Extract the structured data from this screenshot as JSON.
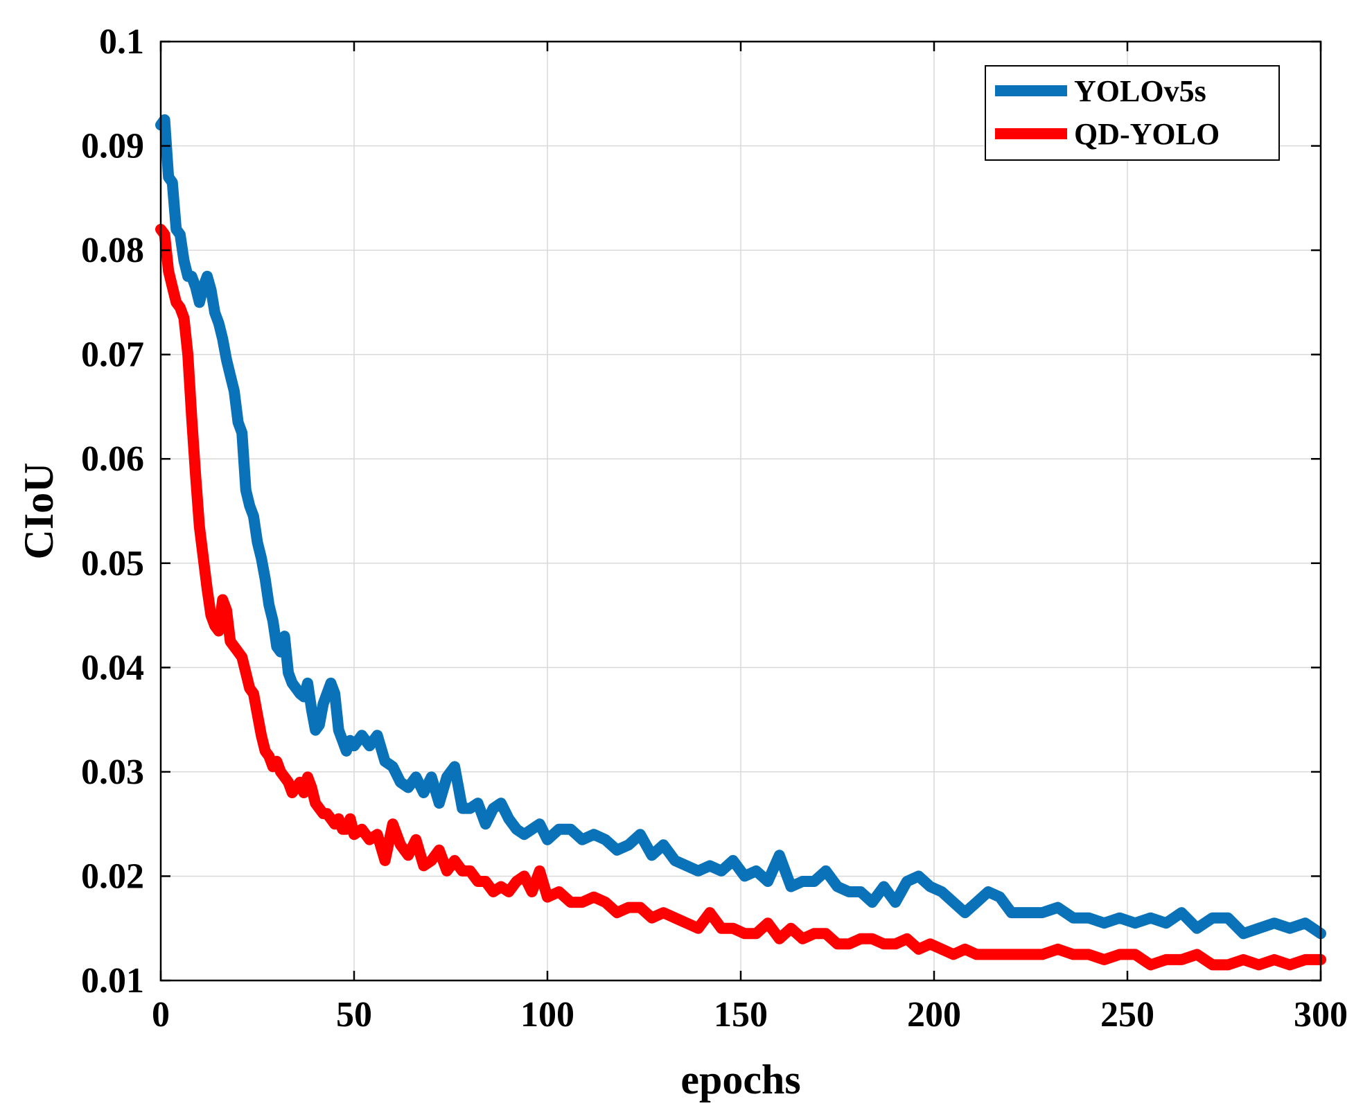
{
  "chart_data": {
    "type": "line",
    "title": "",
    "xlabel": "epochs",
    "ylabel": "CIoU",
    "xlim": [
      0,
      300
    ],
    "ylim": [
      0.01,
      0.1
    ],
    "xticks": [
      0,
      50,
      100,
      150,
      200,
      250,
      300
    ],
    "xtick_labels": [
      "0",
      "50",
      "100",
      "150",
      "200",
      "250",
      "300"
    ],
    "yticks": [
      0.01,
      0.02,
      0.03,
      0.04,
      0.05,
      0.06,
      0.07,
      0.08,
      0.09,
      0.1
    ],
    "ytick_labels": [
      "0.01",
      "0.02",
      "0.03",
      "0.04",
      "0.05",
      "0.06",
      "0.07",
      "0.08",
      "0.09",
      "0.1"
    ],
    "grid": true,
    "legend": "top-right",
    "series": [
      {
        "name": "YOLOv5s",
        "color": "#0a72b8",
        "x": [
          0,
          1,
          2,
          3,
          4,
          5,
          6,
          7,
          8,
          9,
          10,
          11,
          12,
          13,
          14,
          15,
          16,
          17,
          18,
          19,
          20,
          21,
          22,
          23,
          24,
          25,
          26,
          27,
          28,
          29,
          30,
          31,
          32,
          33,
          34,
          35,
          36,
          37,
          38,
          39,
          40,
          41,
          42,
          43,
          44,
          45,
          46,
          47,
          48,
          49,
          50,
          52,
          54,
          56,
          58,
          60,
          62,
          64,
          66,
          68,
          70,
          72,
          74,
          76,
          78,
          80,
          82,
          84,
          86,
          88,
          90,
          92,
          94,
          96,
          98,
          100,
          103,
          106,
          109,
          112,
          115,
          118,
          121,
          124,
          127,
          130,
          133,
          136,
          139,
          142,
          145,
          148,
          151,
          154,
          157,
          160,
          163,
          166,
          169,
          172,
          175,
          178,
          181,
          184,
          187,
          190,
          193,
          196,
          199,
          202,
          205,
          208,
          211,
          214,
          217,
          220,
          224,
          228,
          232,
          236,
          240,
          244,
          248,
          252,
          256,
          260,
          264,
          268,
          272,
          276,
          280,
          284,
          288,
          292,
          296,
          300
        ],
        "values": [
          0.092,
          0.0925,
          0.087,
          0.0865,
          0.082,
          0.0815,
          0.079,
          0.0775,
          0.0775,
          0.0765,
          0.075,
          0.0765,
          0.0775,
          0.0762,
          0.074,
          0.073,
          0.0715,
          0.0695,
          0.068,
          0.0665,
          0.0635,
          0.0625,
          0.057,
          0.0555,
          0.0545,
          0.052,
          0.0505,
          0.0485,
          0.046,
          0.0445,
          0.042,
          0.0415,
          0.043,
          0.0395,
          0.0385,
          0.038,
          0.0375,
          0.0372,
          0.0385,
          0.036,
          0.034,
          0.0345,
          0.0365,
          0.0375,
          0.0385,
          0.0375,
          0.034,
          0.033,
          0.032,
          0.033,
          0.0325,
          0.0335,
          0.0325,
          0.0335,
          0.031,
          0.0305,
          0.029,
          0.0285,
          0.0295,
          0.028,
          0.0295,
          0.027,
          0.0295,
          0.0305,
          0.0265,
          0.0265,
          0.027,
          0.025,
          0.0265,
          0.027,
          0.0255,
          0.0245,
          0.024,
          0.0245,
          0.025,
          0.0235,
          0.0245,
          0.0245,
          0.0235,
          0.024,
          0.0235,
          0.0225,
          0.023,
          0.024,
          0.022,
          0.023,
          0.0215,
          0.021,
          0.0205,
          0.021,
          0.0205,
          0.0215,
          0.02,
          0.0205,
          0.0195,
          0.022,
          0.019,
          0.0195,
          0.0195,
          0.0205,
          0.019,
          0.0185,
          0.0185,
          0.0175,
          0.019,
          0.0175,
          0.0195,
          0.02,
          0.019,
          0.0185,
          0.0175,
          0.0165,
          0.0175,
          0.0185,
          0.018,
          0.0165,
          0.0165,
          0.0165,
          0.017,
          0.016,
          0.016,
          0.0155,
          0.016,
          0.0155,
          0.016,
          0.0155,
          0.0165,
          0.015,
          0.016,
          0.016,
          0.0145,
          0.015,
          0.0155,
          0.015,
          0.0155,
          0.0145
        ]
      },
      {
        "name": "QD-YOLO",
        "color": "#ff0000",
        "x": [
          0,
          1,
          2,
          3,
          4,
          5,
          6,
          7,
          8,
          9,
          10,
          11,
          12,
          13,
          14,
          15,
          16,
          17,
          18,
          19,
          20,
          21,
          22,
          23,
          24,
          25,
          26,
          27,
          28,
          29,
          30,
          31,
          32,
          33,
          34,
          35,
          36,
          37,
          38,
          39,
          40,
          41,
          42,
          43,
          44,
          45,
          46,
          47,
          48,
          49,
          50,
          52,
          54,
          56,
          58,
          60,
          62,
          64,
          66,
          68,
          70,
          72,
          74,
          76,
          78,
          80,
          82,
          84,
          86,
          88,
          90,
          92,
          94,
          96,
          98,
          100,
          103,
          106,
          109,
          112,
          115,
          118,
          121,
          124,
          127,
          130,
          133,
          136,
          139,
          142,
          145,
          148,
          151,
          154,
          157,
          160,
          163,
          166,
          169,
          172,
          175,
          178,
          181,
          184,
          187,
          190,
          193,
          196,
          199,
          202,
          205,
          208,
          211,
          214,
          217,
          220,
          224,
          228,
          232,
          236,
          240,
          244,
          248,
          252,
          256,
          260,
          264,
          268,
          272,
          276,
          280,
          284,
          288,
          292,
          296,
          300
        ],
        "values": [
          0.082,
          0.0815,
          0.078,
          0.0765,
          0.075,
          0.0745,
          0.0735,
          0.07,
          0.064,
          0.0585,
          0.0535,
          0.0505,
          0.0475,
          0.045,
          0.044,
          0.0435,
          0.0465,
          0.0455,
          0.0425,
          0.042,
          0.0415,
          0.041,
          0.0395,
          0.038,
          0.0375,
          0.0355,
          0.0335,
          0.032,
          0.0315,
          0.0305,
          0.031,
          0.03,
          0.0295,
          0.029,
          0.028,
          0.0285,
          0.029,
          0.028,
          0.0295,
          0.0285,
          0.027,
          0.0265,
          0.026,
          0.026,
          0.0255,
          0.025,
          0.0255,
          0.0245,
          0.0245,
          0.0255,
          0.024,
          0.0245,
          0.0235,
          0.024,
          0.0215,
          0.025,
          0.023,
          0.022,
          0.0235,
          0.021,
          0.0215,
          0.0225,
          0.0205,
          0.0215,
          0.0205,
          0.0205,
          0.0195,
          0.0195,
          0.0185,
          0.019,
          0.0185,
          0.0195,
          0.02,
          0.0185,
          0.0205,
          0.018,
          0.0185,
          0.0175,
          0.0175,
          0.018,
          0.0175,
          0.0165,
          0.017,
          0.017,
          0.016,
          0.0165,
          0.016,
          0.0155,
          0.015,
          0.0165,
          0.015,
          0.015,
          0.0145,
          0.0145,
          0.0155,
          0.014,
          0.015,
          0.014,
          0.0145,
          0.0145,
          0.0135,
          0.0135,
          0.014,
          0.014,
          0.0135,
          0.0135,
          0.014,
          0.013,
          0.0135,
          0.013,
          0.0125,
          0.013,
          0.0125,
          0.0125,
          0.0125,
          0.0125,
          0.0125,
          0.0125,
          0.013,
          0.0125,
          0.0125,
          0.012,
          0.0125,
          0.0125,
          0.0115,
          0.012,
          0.012,
          0.0125,
          0.0115,
          0.0115,
          0.012,
          0.0115,
          0.012,
          0.0115,
          0.012,
          0.012
        ]
      }
    ]
  }
}
